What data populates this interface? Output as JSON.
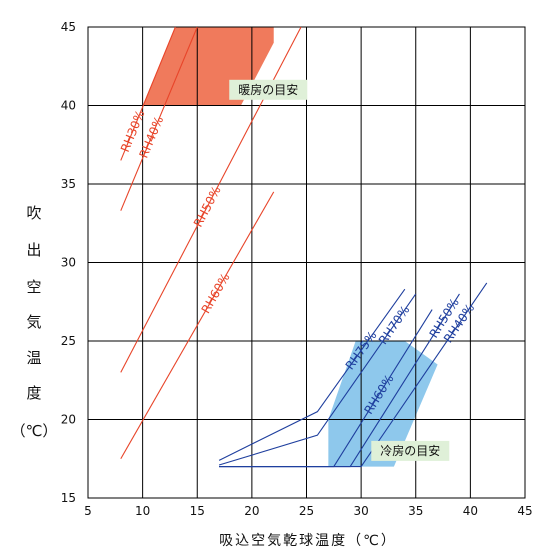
{
  "chart_data": {
    "type": "line",
    "title": "",
    "xlabel": "吸込空気乾球温度（℃）",
    "ylabel": "吹出空気温度（℃）",
    "ylabel_chars": [
      "吹",
      "出",
      "空",
      "気",
      "温",
      "度",
      "（℃）"
    ],
    "xlim": [
      5,
      45
    ],
    "ylim": [
      15,
      45
    ],
    "xticks": [
      5,
      10,
      15,
      20,
      25,
      30,
      35,
      40,
      45
    ],
    "yticks": [
      15,
      20,
      25,
      30,
      35,
      40,
      45
    ],
    "grid": true,
    "colors": {
      "heating": "#e8452a",
      "heating_fill": "#f07a5c",
      "cooling": "#1f3f9e",
      "cooling_fill": "#8ec8ec",
      "note_bg": "#dff0d8"
    },
    "heating_region": [
      [
        13,
        45
      ],
      [
        22,
        45
      ],
      [
        22,
        44
      ],
      [
        19,
        40
      ],
      [
        10,
        40
      ]
    ],
    "cooling_region": [
      [
        27,
        20
      ],
      [
        29.5,
        25
      ],
      [
        34,
        25
      ],
      [
        37,
        23.5
      ],
      [
        33,
        17
      ],
      [
        27,
        17
      ]
    ],
    "heating_series": [
      {
        "name": "RH30%",
        "x": [
          8,
          13
        ],
        "y": [
          36.5,
          45
        ]
      },
      {
        "name": "RH40%",
        "x": [
          8,
          15
        ],
        "y": [
          33.3,
          45
        ]
      },
      {
        "name": "RH50%",
        "x": [
          8,
          24.5
        ],
        "y": [
          23,
          45
        ]
      },
      {
        "name": "RH60%",
        "x": [
          8,
          22
        ],
        "y": [
          17.5,
          34.5
        ]
      }
    ],
    "cooling_series": [
      {
        "name": "RH75%",
        "x": [
          17,
          26,
          34
        ],
        "y": [
          17.4,
          20.5,
          28.3
        ]
      },
      {
        "name": "RH70%",
        "x": [
          17,
          26,
          35
        ],
        "y": [
          17.1,
          19,
          28
        ]
      },
      {
        "name": "RH60%",
        "x": [
          17,
          27.5,
          36.5
        ],
        "y": [
          17,
          17,
          27
        ]
      },
      {
        "name": "RH50%",
        "x": [
          17,
          29,
          39
        ],
        "y": [
          17,
          17,
          28
        ]
      },
      {
        "name": "RH40%",
        "x": [
          17,
          30,
          41.5
        ],
        "y": [
          17,
          17,
          28.7
        ]
      }
    ],
    "annotations": [
      {
        "text": "暖房の目安",
        "x": 21.5,
        "y": 41
      },
      {
        "text": "冷房の目安",
        "x": 34.5,
        "y": 18
      }
    ]
  }
}
